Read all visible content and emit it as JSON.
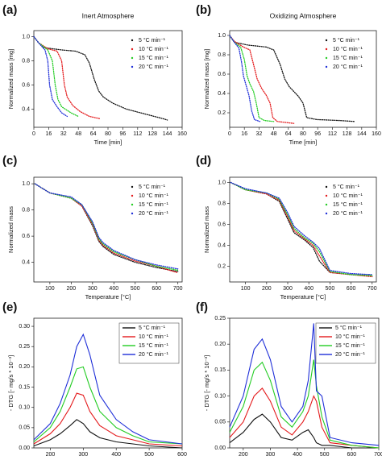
{
  "chart_data": [
    {
      "type": "line",
      "panel_label": "(a)",
      "title": "Inert Atmosphere",
      "x_label": "Time [min]",
      "y_label": "Normalized mass [mg]",
      "line_style": "dotted",
      "legend": "top-right",
      "xlim": [
        0,
        160
      ],
      "xticks": [
        0,
        16,
        32,
        48,
        64,
        80,
        96,
        112,
        128,
        144,
        160
      ],
      "ylim": [
        0.25,
        1.05
      ],
      "yticks": [
        0.4,
        0.6,
        0.8,
        {
          "value": 1,
          "label": "1.0"
        }
      ],
      "series": [
        {
          "name": "5 °C min⁻¹",
          "color": "#111111",
          "x": [
            0,
            5,
            10,
            30,
            45,
            55,
            60,
            65,
            70,
            75,
            85,
            100,
            120,
            140,
            144
          ],
          "values": [
            1,
            0.95,
            0.91,
            0.89,
            0.88,
            0.85,
            0.78,
            0.65,
            0.55,
            0.5,
            0.45,
            0.4,
            0.36,
            0.32,
            0.31
          ]
        },
        {
          "name": "10 °C min⁻¹",
          "color": "#e41a1c",
          "x": [
            0,
            5,
            15,
            25,
            30,
            33,
            36,
            42,
            50,
            60,
            72
          ],
          "values": [
            1,
            0.95,
            0.9,
            0.88,
            0.8,
            0.6,
            0.5,
            0.43,
            0.38,
            0.34,
            0.32
          ]
        },
        {
          "name": "15 °C min⁻¹",
          "color": "#22cc22",
          "x": [
            0,
            5,
            15,
            20,
            23,
            26,
            30,
            40,
            48
          ],
          "values": [
            1,
            0.95,
            0.89,
            0.8,
            0.6,
            0.48,
            0.42,
            0.37,
            0.34
          ]
        },
        {
          "name": "20 °C min⁻¹",
          "color": "#1f2fd8",
          "x": [
            0,
            5,
            12,
            15,
            17,
            20,
            25,
            30,
            36
          ],
          "values": [
            1,
            0.95,
            0.89,
            0.8,
            0.6,
            0.48,
            0.42,
            0.37,
            0.34
          ]
        }
      ]
    },
    {
      "type": "line",
      "panel_label": "(b)",
      "title": "Oxidizing Atmosphere",
      "x_label": "Time [min]",
      "y_label": "Normalized mass [mg]",
      "line_style": "dotted",
      "legend": "top-right",
      "xlim": [
        0,
        160
      ],
      "xticks": [
        0,
        16,
        32,
        48,
        64,
        80,
        96,
        112,
        128,
        144,
        160
      ],
      "ylim": [
        0.05,
        1.05
      ],
      "yticks": [
        0.2,
        0.4,
        0.6,
        0.8,
        {
          "value": 1,
          "label": "1.0"
        }
      ],
      "series": [
        {
          "name": "5 °C min⁻¹",
          "color": "#111111",
          "x": [
            0,
            5,
            20,
            40,
            48,
            55,
            60,
            65,
            70,
            75,
            80,
            84,
            95,
            120,
            136
          ],
          "values": [
            1,
            0.93,
            0.9,
            0.88,
            0.85,
            0.7,
            0.55,
            0.47,
            0.42,
            0.37,
            0.3,
            0.15,
            0.13,
            0.12,
            0.11
          ]
        },
        {
          "name": "10 °C min⁻¹",
          "color": "#e41a1c",
          "x": [
            0,
            5,
            15,
            22,
            26,
            30,
            35,
            40,
            44,
            47,
            52,
            70
          ],
          "values": [
            1,
            0.94,
            0.88,
            0.85,
            0.7,
            0.55,
            0.45,
            0.38,
            0.3,
            0.15,
            0.11,
            0.09
          ]
        },
        {
          "name": "15 °C min⁻¹",
          "color": "#22cc22",
          "x": [
            0,
            5,
            12,
            16,
            19,
            22,
            26,
            29,
            32,
            38,
            48
          ],
          "values": [
            1,
            0.93,
            0.88,
            0.75,
            0.58,
            0.5,
            0.42,
            0.3,
            0.15,
            0.12,
            0.11
          ]
        },
        {
          "name": "20 °C min⁻¹",
          "color": "#1f2fd8",
          "x": [
            0,
            5,
            10,
            13,
            15,
            18,
            21,
            24,
            27,
            33
          ],
          "values": [
            1,
            0.93,
            0.87,
            0.72,
            0.58,
            0.48,
            0.38,
            0.22,
            0.13,
            0.11
          ]
        }
      ]
    },
    {
      "type": "line",
      "panel_label": "(c)",
      "x_label": "Temperature [°C]",
      "y_label": "Normalized mass",
      "line_style": "dotted",
      "legend": "top-right",
      "xlim": [
        25,
        720
      ],
      "xticks": [
        100,
        200,
        300,
        400,
        500,
        600,
        700
      ],
      "ylim": [
        0.25,
        1.05
      ],
      "yticks": [
        0.4,
        0.6,
        0.8,
        {
          "value": 1,
          "label": "1.0"
        }
      ],
      "series": [
        {
          "name": "5 °C min⁻¹",
          "color": "#111111",
          "x": [
            30,
            100,
            200,
            250,
            300,
            330,
            350,
            400,
            500,
            600,
            700
          ],
          "values": [
            1,
            0.93,
            0.89,
            0.83,
            0.68,
            0.56,
            0.52,
            0.46,
            0.4,
            0.36,
            0.33
          ]
        },
        {
          "name": "10 °C min⁻¹",
          "color": "#e41a1c",
          "x": [
            30,
            100,
            200,
            250,
            300,
            330,
            350,
            400,
            500,
            600,
            700
          ],
          "values": [
            1,
            0.93,
            0.89,
            0.83,
            0.69,
            0.57,
            0.53,
            0.47,
            0.41,
            0.37,
            0.32
          ]
        },
        {
          "name": "15 °C min⁻¹",
          "color": "#22cc22",
          "x": [
            30,
            100,
            200,
            250,
            300,
            330,
            350,
            400,
            500,
            600,
            700
          ],
          "values": [
            1,
            0.93,
            0.89,
            0.84,
            0.7,
            0.58,
            0.54,
            0.48,
            0.42,
            0.37,
            0.34
          ]
        },
        {
          "name": "20 °C min⁻¹",
          "color": "#1f2fd8",
          "x": [
            30,
            100,
            200,
            250,
            300,
            330,
            350,
            400,
            500,
            600,
            700
          ],
          "values": [
            1,
            0.93,
            0.9,
            0.84,
            0.71,
            0.59,
            0.55,
            0.49,
            0.42,
            0.38,
            0.35
          ]
        }
      ]
    },
    {
      "type": "line",
      "panel_label": "(d)",
      "x_label": "Temperature [°C]",
      "y_label": "Normalized mass",
      "line_style": "dotted",
      "legend": "top-right",
      "xlim": [
        25,
        720
      ],
      "xticks": [
        100,
        200,
        300,
        400,
        500,
        600,
        700
      ],
      "ylim": [
        0.05,
        1.05
      ],
      "yticks": [
        0.2,
        0.4,
        0.6,
        0.8,
        {
          "value": 1,
          "label": "1.0"
        }
      ],
      "series": [
        {
          "name": "5 °C min⁻¹",
          "color": "#111111",
          "x": [
            30,
            100,
            200,
            260,
            300,
            330,
            380,
            420,
            450,
            500,
            600,
            700
          ],
          "values": [
            1,
            0.93,
            0.89,
            0.82,
            0.65,
            0.52,
            0.45,
            0.38,
            0.25,
            0.14,
            0.12,
            0.11
          ]
        },
        {
          "name": "10 °C min⁻¹",
          "color": "#e41a1c",
          "x": [
            30,
            100,
            200,
            260,
            300,
            330,
            380,
            420,
            450,
            500,
            600,
            700
          ],
          "values": [
            1,
            0.93,
            0.89,
            0.83,
            0.67,
            0.54,
            0.46,
            0.4,
            0.3,
            0.14,
            0.12,
            0.1
          ]
        },
        {
          "name": "15 °C min⁻¹",
          "color": "#22cc22",
          "x": [
            30,
            100,
            200,
            260,
            300,
            330,
            380,
            420,
            450,
            500,
            600,
            700
          ],
          "values": [
            1,
            0.93,
            0.9,
            0.84,
            0.69,
            0.56,
            0.47,
            0.42,
            0.34,
            0.15,
            0.12,
            0.11
          ]
        },
        {
          "name": "20 °C min⁻¹",
          "color": "#1f2fd8",
          "x": [
            30,
            100,
            200,
            260,
            300,
            330,
            380,
            420,
            450,
            500,
            600,
            700
          ],
          "values": [
            1,
            0.94,
            0.9,
            0.85,
            0.71,
            0.58,
            0.49,
            0.43,
            0.37,
            0.16,
            0.13,
            0.12
          ]
        }
      ]
    },
    {
      "type": "line",
      "panel_label": "(e)",
      "x_label": "Temperature [°C]",
      "y_label": "- DTG [- mg/s * 10⁻³]",
      "line_style": "solid",
      "legend": "top-right",
      "legend_box": true,
      "xlim": [
        150,
        600
      ],
      "xticks": [
        200,
        300,
        400,
        500,
        600
      ],
      "ylim": [
        0,
        0.32
      ],
      "yticks": [
        {
          "value": 0,
          "label": "0.00"
        },
        {
          "value": 0.05,
          "label": "0.05"
        },
        {
          "value": 0.1,
          "label": "0.10"
        },
        {
          "value": 0.15,
          "label": "0.15"
        },
        {
          "value": 0.2,
          "label": "0.20"
        },
        {
          "value": 0.25,
          "label": "0.25"
        },
        {
          "value": 0.3,
          "label": "0.30"
        }
      ],
      "series": [
        {
          "name": "5 °C min⁻¹",
          "color": "#111111",
          "x": [
            150,
            200,
            230,
            260,
            280,
            300,
            320,
            350,
            400,
            450,
            500,
            600
          ],
          "values": [
            0.005,
            0.02,
            0.035,
            0.055,
            0.07,
            0.06,
            0.04,
            0.025,
            0.015,
            0.01,
            0.005,
            0
          ]
        },
        {
          "name": "10 °C min⁻¹",
          "color": "#e41a1c",
          "x": [
            150,
            200,
            230,
            260,
            280,
            300,
            320,
            350,
            400,
            450,
            500,
            600
          ],
          "values": [
            0.01,
            0.035,
            0.06,
            0.1,
            0.135,
            0.13,
            0.09,
            0.055,
            0.03,
            0.02,
            0.01,
            0.005
          ]
        },
        {
          "name": "15 °C min⁻¹",
          "color": "#22cc22",
          "x": [
            150,
            200,
            230,
            260,
            280,
            300,
            320,
            350,
            400,
            450,
            500,
            600
          ],
          "values": [
            0.015,
            0.05,
            0.09,
            0.15,
            0.195,
            0.2,
            0.15,
            0.09,
            0.05,
            0.03,
            0.015,
            0.01
          ]
        },
        {
          "name": "20 °C min⁻¹",
          "color": "#1f2fd8",
          "x": [
            150,
            200,
            230,
            260,
            280,
            300,
            320,
            350,
            400,
            450,
            500,
            600
          ],
          "values": [
            0.02,
            0.06,
            0.11,
            0.18,
            0.25,
            0.28,
            0.23,
            0.13,
            0.07,
            0.04,
            0.02,
            0.01
          ]
        }
      ]
    },
    {
      "type": "line",
      "panel_label": "(f)",
      "x_label": "Temperature [°C]",
      "y_label": "- DTG [- mg/s * 10⁻³]",
      "line_style": "solid",
      "legend": "top-right",
      "legend_box": true,
      "xlim": [
        150,
        700
      ],
      "xticks": [
        200,
        300,
        400,
        500,
        600,
        700
      ],
      "ylim": [
        0,
        0.25
      ],
      "yticks": [
        {
          "value": 0,
          "label": "0.00"
        },
        {
          "value": 0.05,
          "label": "0.05"
        },
        {
          "value": 0.1,
          "label": "0.10"
        },
        {
          "value": 0.15,
          "label": "0.15"
        },
        {
          "value": 0.2,
          "label": "0.20"
        },
        {
          "value": 0.25,
          "label": "0.25"
        }
      ],
      "series": [
        {
          "name": "5 °C min⁻¹",
          "color": "#111111",
          "x": [
            150,
            200,
            240,
            270,
            300,
            340,
            380,
            420,
            440,
            460,
            470,
            490,
            520,
            600,
            700
          ],
          "values": [
            0.01,
            0.03,
            0.055,
            0.065,
            0.05,
            0.02,
            0.015,
            0.03,
            0.035,
            0.02,
            0.01,
            0.005,
            0.005,
            0,
            0
          ]
        },
        {
          "name": "10 °C min⁻¹",
          "color": "#e41a1c",
          "x": [
            150,
            200,
            240,
            270,
            300,
            340,
            380,
            420,
            440,
            460,
            470,
            490,
            520,
            600,
            700
          ],
          "values": [
            0.02,
            0.05,
            0.1,
            0.115,
            0.09,
            0.04,
            0.025,
            0.05,
            0.07,
            0.1,
            0.09,
            0.04,
            0.01,
            0.005,
            0
          ]
        },
        {
          "name": "15 °C min⁻¹",
          "color": "#22cc22",
          "x": [
            150,
            200,
            240,
            270,
            300,
            340,
            380,
            420,
            440,
            460,
            470,
            490,
            520,
            600,
            700
          ],
          "values": [
            0.03,
            0.08,
            0.15,
            0.165,
            0.13,
            0.06,
            0.04,
            0.07,
            0.1,
            0.17,
            0.12,
            0.06,
            0.015,
            0.005,
            0
          ]
        },
        {
          "name": "20 °C min⁻¹",
          "color": "#1f2fd8",
          "x": [
            150,
            200,
            240,
            270,
            300,
            340,
            380,
            420,
            440,
            460,
            470,
            490,
            520,
            600,
            700
          ],
          "values": [
            0.04,
            0.1,
            0.19,
            0.21,
            0.17,
            0.08,
            0.05,
            0.08,
            0.13,
            0.24,
            0.11,
            0.1,
            0.02,
            0.01,
            0.005
          ]
        }
      ]
    }
  ]
}
